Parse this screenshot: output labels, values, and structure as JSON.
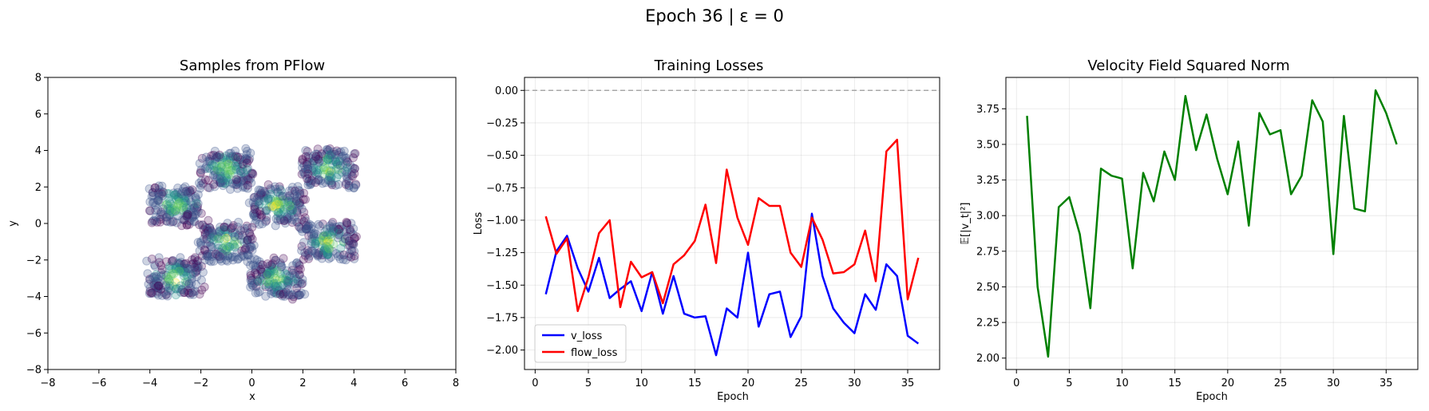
{
  "figure_title": "Epoch 36 | ε = 0",
  "chart_data": [
    {
      "type": "scatter",
      "title": "Samples from PFlow",
      "xlabel": "x",
      "ylabel": "y",
      "xlim": [
        -8,
        8
      ],
      "ylim": [
        -8,
        8
      ],
      "xticks": [
        -8,
        -6,
        -4,
        -2,
        0,
        2,
        4,
        6,
        8
      ],
      "yticks": [
        -8,
        -6,
        -4,
        -2,
        0,
        2,
        4,
        6,
        8
      ],
      "grid": false,
      "colormap": "viridis",
      "point_alpha": 0.25,
      "clusters": [
        {
          "x_range": [
            -4,
            -2
          ],
          "y_range": [
            0,
            2
          ]
        },
        {
          "x_range": [
            -2,
            0
          ],
          "y_range": [
            2,
            4
          ]
        },
        {
          "x_range": [
            0,
            2
          ],
          "y_range": [
            0,
            2
          ]
        },
        {
          "x_range": [
            2,
            4
          ],
          "y_range": [
            2,
            4
          ]
        },
        {
          "x_range": [
            -4,
            -2
          ],
          "y_range": [
            -4,
            -2
          ]
        },
        {
          "x_range": [
            -2,
            0
          ],
          "y_range": [
            -2,
            0
          ]
        },
        {
          "x_range": [
            0,
            2
          ],
          "y_range": [
            -4,
            -2
          ]
        },
        {
          "x_range": [
            2,
            4
          ],
          "y_range": [
            -2,
            0
          ]
        }
      ]
    },
    {
      "type": "line",
      "title": "Training Losses",
      "xlabel": "Epoch",
      "ylabel": "Loss",
      "xlim": [
        -1,
        38
      ],
      "ylim": [
        -2.15,
        0.1
      ],
      "xticks": [
        0,
        5,
        10,
        15,
        20,
        25,
        30,
        35
      ],
      "yticks": [
        0.0,
        -0.25,
        -0.5,
        -0.75,
        -1.0,
        -1.25,
        -1.5,
        -1.75,
        -2.0
      ],
      "ytick_labels": [
        "0.00",
        "−0.25",
        "−0.50",
        "−0.75",
        "−1.00",
        "−1.25",
        "−1.50",
        "−1.75",
        "−2.00"
      ],
      "grid": true,
      "reference_line": {
        "y": 0,
        "color": "#999999",
        "style": "dashed"
      },
      "legend_position": "lower-left",
      "x": [
        1,
        2,
        3,
        4,
        5,
        6,
        7,
        8,
        9,
        10,
        11,
        12,
        13,
        14,
        15,
        16,
        17,
        18,
        19,
        20,
        21,
        22,
        23,
        24,
        25,
        26,
        27,
        28,
        29,
        30,
        31,
        32,
        33,
        34,
        35,
        36
      ],
      "series": [
        {
          "name": "v_loss",
          "color": "#0000ff",
          "values": [
            -1.57,
            -1.24,
            -1.12,
            -1.37,
            -1.55,
            -1.29,
            -1.6,
            -1.53,
            -1.47,
            -1.7,
            -1.4,
            -1.72,
            -1.43,
            -1.72,
            -1.75,
            -1.74,
            -2.04,
            -1.68,
            -1.75,
            -1.25,
            -1.82,
            -1.57,
            -1.55,
            -1.9,
            -1.74,
            -0.95,
            -1.43,
            -1.68,
            -1.79,
            -1.87,
            -1.57,
            -1.69,
            -1.34,
            -1.43,
            -1.89,
            -1.95
          ]
        },
        {
          "name": "flow_loss",
          "color": "#ff0000",
          "values": [
            -0.97,
            -1.26,
            -1.14,
            -1.7,
            -1.44,
            -1.1,
            -1.0,
            -1.67,
            -1.32,
            -1.44,
            -1.4,
            -1.64,
            -1.34,
            -1.27,
            -1.16,
            -0.88,
            -1.33,
            -0.61,
            -0.98,
            -1.19,
            -0.83,
            -0.89,
            -0.89,
            -1.25,
            -1.36,
            -0.98,
            -1.15,
            -1.41,
            -1.4,
            -1.34,
            -1.08,
            -1.47,
            -0.47,
            -0.38,
            -1.61,
            -1.29
          ]
        }
      ]
    },
    {
      "type": "line",
      "title": "Velocity Field Squared Norm",
      "xlabel": "Epoch",
      "ylabel": "𝔼[|v_t|²]",
      "xlim": [
        -1,
        38
      ],
      "ylim": [
        1.92,
        3.97
      ],
      "xticks": [
        0,
        5,
        10,
        15,
        20,
        25,
        30,
        35
      ],
      "yticks": [
        2.0,
        2.25,
        2.5,
        2.75,
        3.0,
        3.25,
        3.5,
        3.75
      ],
      "ytick_labels": [
        "2.00",
        "2.25",
        "2.50",
        "2.75",
        "3.00",
        "3.25",
        "3.50",
        "3.75"
      ],
      "grid": true,
      "x": [
        1,
        2,
        3,
        4,
        5,
        6,
        7,
        8,
        9,
        10,
        11,
        12,
        13,
        14,
        15,
        16,
        17,
        18,
        19,
        20,
        21,
        22,
        23,
        24,
        25,
        26,
        27,
        28,
        29,
        30,
        31,
        32,
        33,
        34,
        35,
        36
      ],
      "series": [
        {
          "color": "#008000",
          "values": [
            3.7,
            2.5,
            2.01,
            3.06,
            3.13,
            2.87,
            2.35,
            3.33,
            3.28,
            3.26,
            2.63,
            3.3,
            3.1,
            3.45,
            3.25,
            3.84,
            3.46,
            3.71,
            3.4,
            3.15,
            3.52,
            2.93,
            3.72,
            3.57,
            3.6,
            3.15,
            3.28,
            3.81,
            3.66,
            2.73,
            3.7,
            3.05,
            3.03,
            3.88,
            3.72,
            3.5
          ]
        }
      ]
    }
  ]
}
